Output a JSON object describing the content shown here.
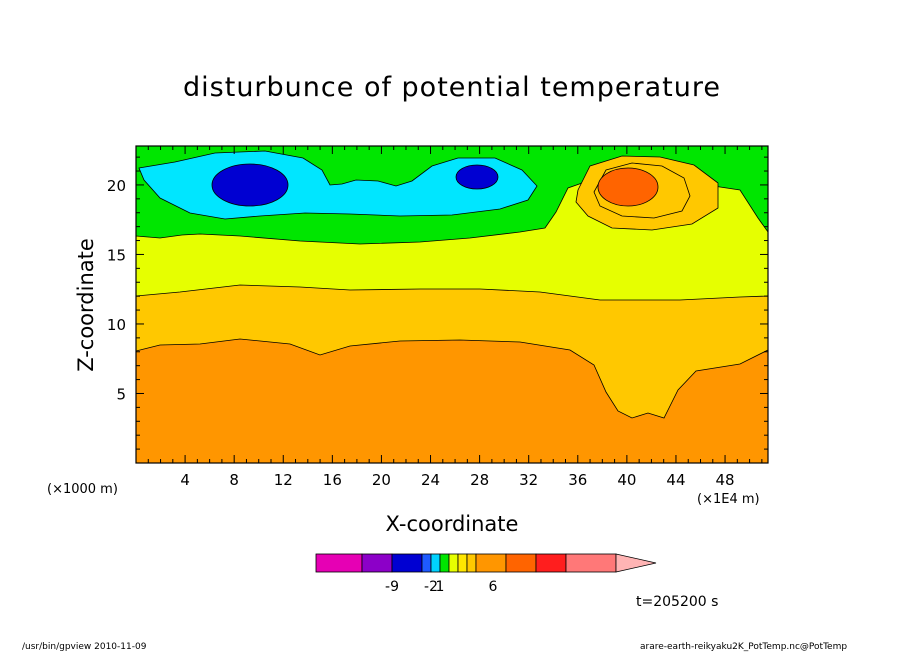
{
  "chart_data": {
    "type": "heatmap",
    "title": "disturbunce of potential temperature",
    "xlabel": "X-coordinate",
    "ylabel": "Z-coordinate",
    "x_unit_left": "(×1000 m)",
    "x_unit_right": "(×1E4 m)",
    "xlim": [
      0,
      51.5
    ],
    "ylim": [
      0,
      22.8
    ],
    "x_ticks": [
      4,
      8,
      12,
      16,
      20,
      24,
      28,
      32,
      36,
      40,
      44,
      48
    ],
    "y_ticks": [
      5,
      10,
      15,
      20
    ],
    "x_tick_labels": [
      "4",
      "8",
      "12",
      "16",
      "20",
      "24",
      "28",
      "32",
      "36",
      "40",
      "44",
      "48"
    ],
    "y_tick_labels": [
      "5",
      "10",
      "15",
      "20"
    ],
    "colorbar": {
      "colors": [
        "#e600b4",
        "#8c00c8",
        "#0000d2",
        "#1e5aff",
        "#00d2ff",
        "#00e600",
        "#e6ff00",
        "#ffe600",
        "#ffc800",
        "#ff9600",
        "#ff6400",
        "#ff1e1e",
        "#ff7878",
        "#ffb4b4"
      ],
      "tick_labels": [
        "-9",
        "-2",
        "1",
        "6"
      ]
    },
    "regions": [
      {
        "level": "band 12-23",
        "color": "#00e600"
      },
      {
        "level": "band 8-16",
        "color": "#e6ff00"
      },
      {
        "level": "band 3-12",
        "color": "#ffc800"
      },
      {
        "level": "band 0-9",
        "color": "#ff9600"
      },
      {
        "level": "cold anomaly",
        "color": "#00e6ff"
      },
      {
        "level": "cold core",
        "color": "#0000d2"
      },
      {
        "level": "warm anomaly",
        "color": "#ffc800"
      },
      {
        "level": "warm core",
        "color": "#ff6400"
      }
    ]
  },
  "time_label": "t=205200 s",
  "footer_left": "/usr/bin/gpview   2010-11-09",
  "footer_right": "arare-earth-reikyaku2K_PotTemp.nc@PotTemp"
}
